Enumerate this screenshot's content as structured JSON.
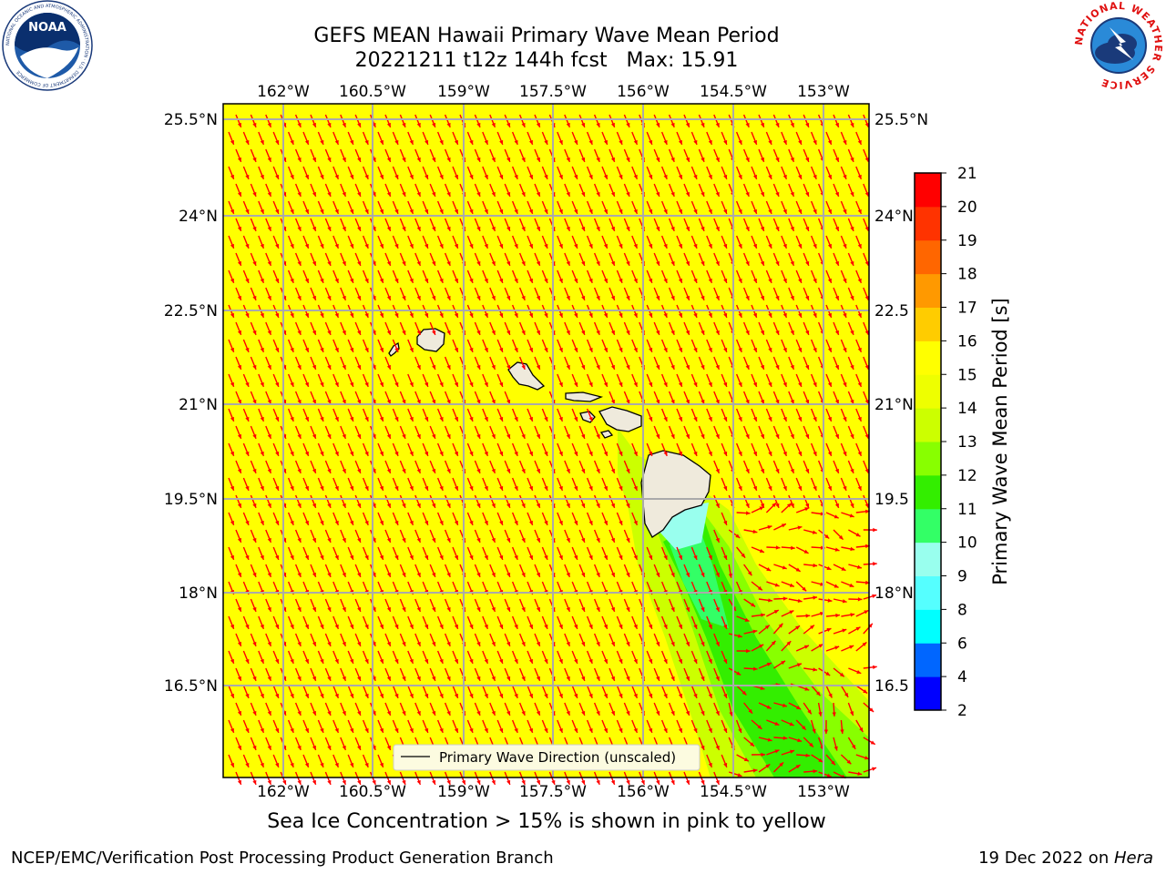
{
  "header": {
    "title_line1": "GEFS MEAN Hawaii Primary Wave Mean Period",
    "title_line2": "20221211 t12z 144h fcst   Max: 15.91"
  },
  "logos": {
    "left": "noaa-logo",
    "left_text": "NOAA",
    "left_ring_text": "NATIONAL OCEANIC AND ATMOSPHERIC ADMINISTRATION · U.S. DEPARTMENT OF COMMERCE",
    "right": "nws-logo",
    "right_ring_text": "NATIONAL WEATHER SERVICE"
  },
  "map": {
    "lon_labels": [
      "162°W",
      "160.5°W",
      "159°W",
      "157.5°W",
      "156°W",
      "154.5°W",
      "153°W"
    ],
    "lat_labels": [
      "25.5°N",
      "24°N",
      "22.5°N",
      "21°N",
      "19.5°N",
      "18°N",
      "16.5°N"
    ],
    "lat_labels_right": [
      "25.5°N",
      "24°N",
      "22.5",
      "21°N",
      "19.5",
      "18°N",
      "16.5"
    ],
    "background_color": "#ffff00",
    "arrow_color": "#ff0000",
    "land_color": "#efeadc",
    "legend_label": "Primary Wave Direction (unscaled)"
  },
  "colorbar": {
    "label": "Primary Wave Mean Period [s]",
    "ticks": [
      "2",
      "4",
      "6",
      "8",
      "9",
      "10",
      "11",
      "12",
      "13",
      "14",
      "15",
      "16",
      "17",
      "18",
      "19",
      "20",
      "21"
    ],
    "colors": [
      "#0000ff",
      "#0066ff",
      "#00ffff",
      "#55ffff",
      "#99ffee",
      "#33ff66",
      "#33ee00",
      "#88ff00",
      "#ccff00",
      "#eeff00",
      "#ffff00",
      "#ffcc00",
      "#ff9900",
      "#ff6600",
      "#ff3300",
      "#ff0000"
    ]
  },
  "footer": {
    "footnote": "Sea Ice Concentration > 15% is shown in pink to yellow",
    "credit": "NCEP/EMC/Verification Post Processing Product Generation Branch",
    "date_prefix": "19 Dec 2022 on ",
    "host": "Hera"
  }
}
